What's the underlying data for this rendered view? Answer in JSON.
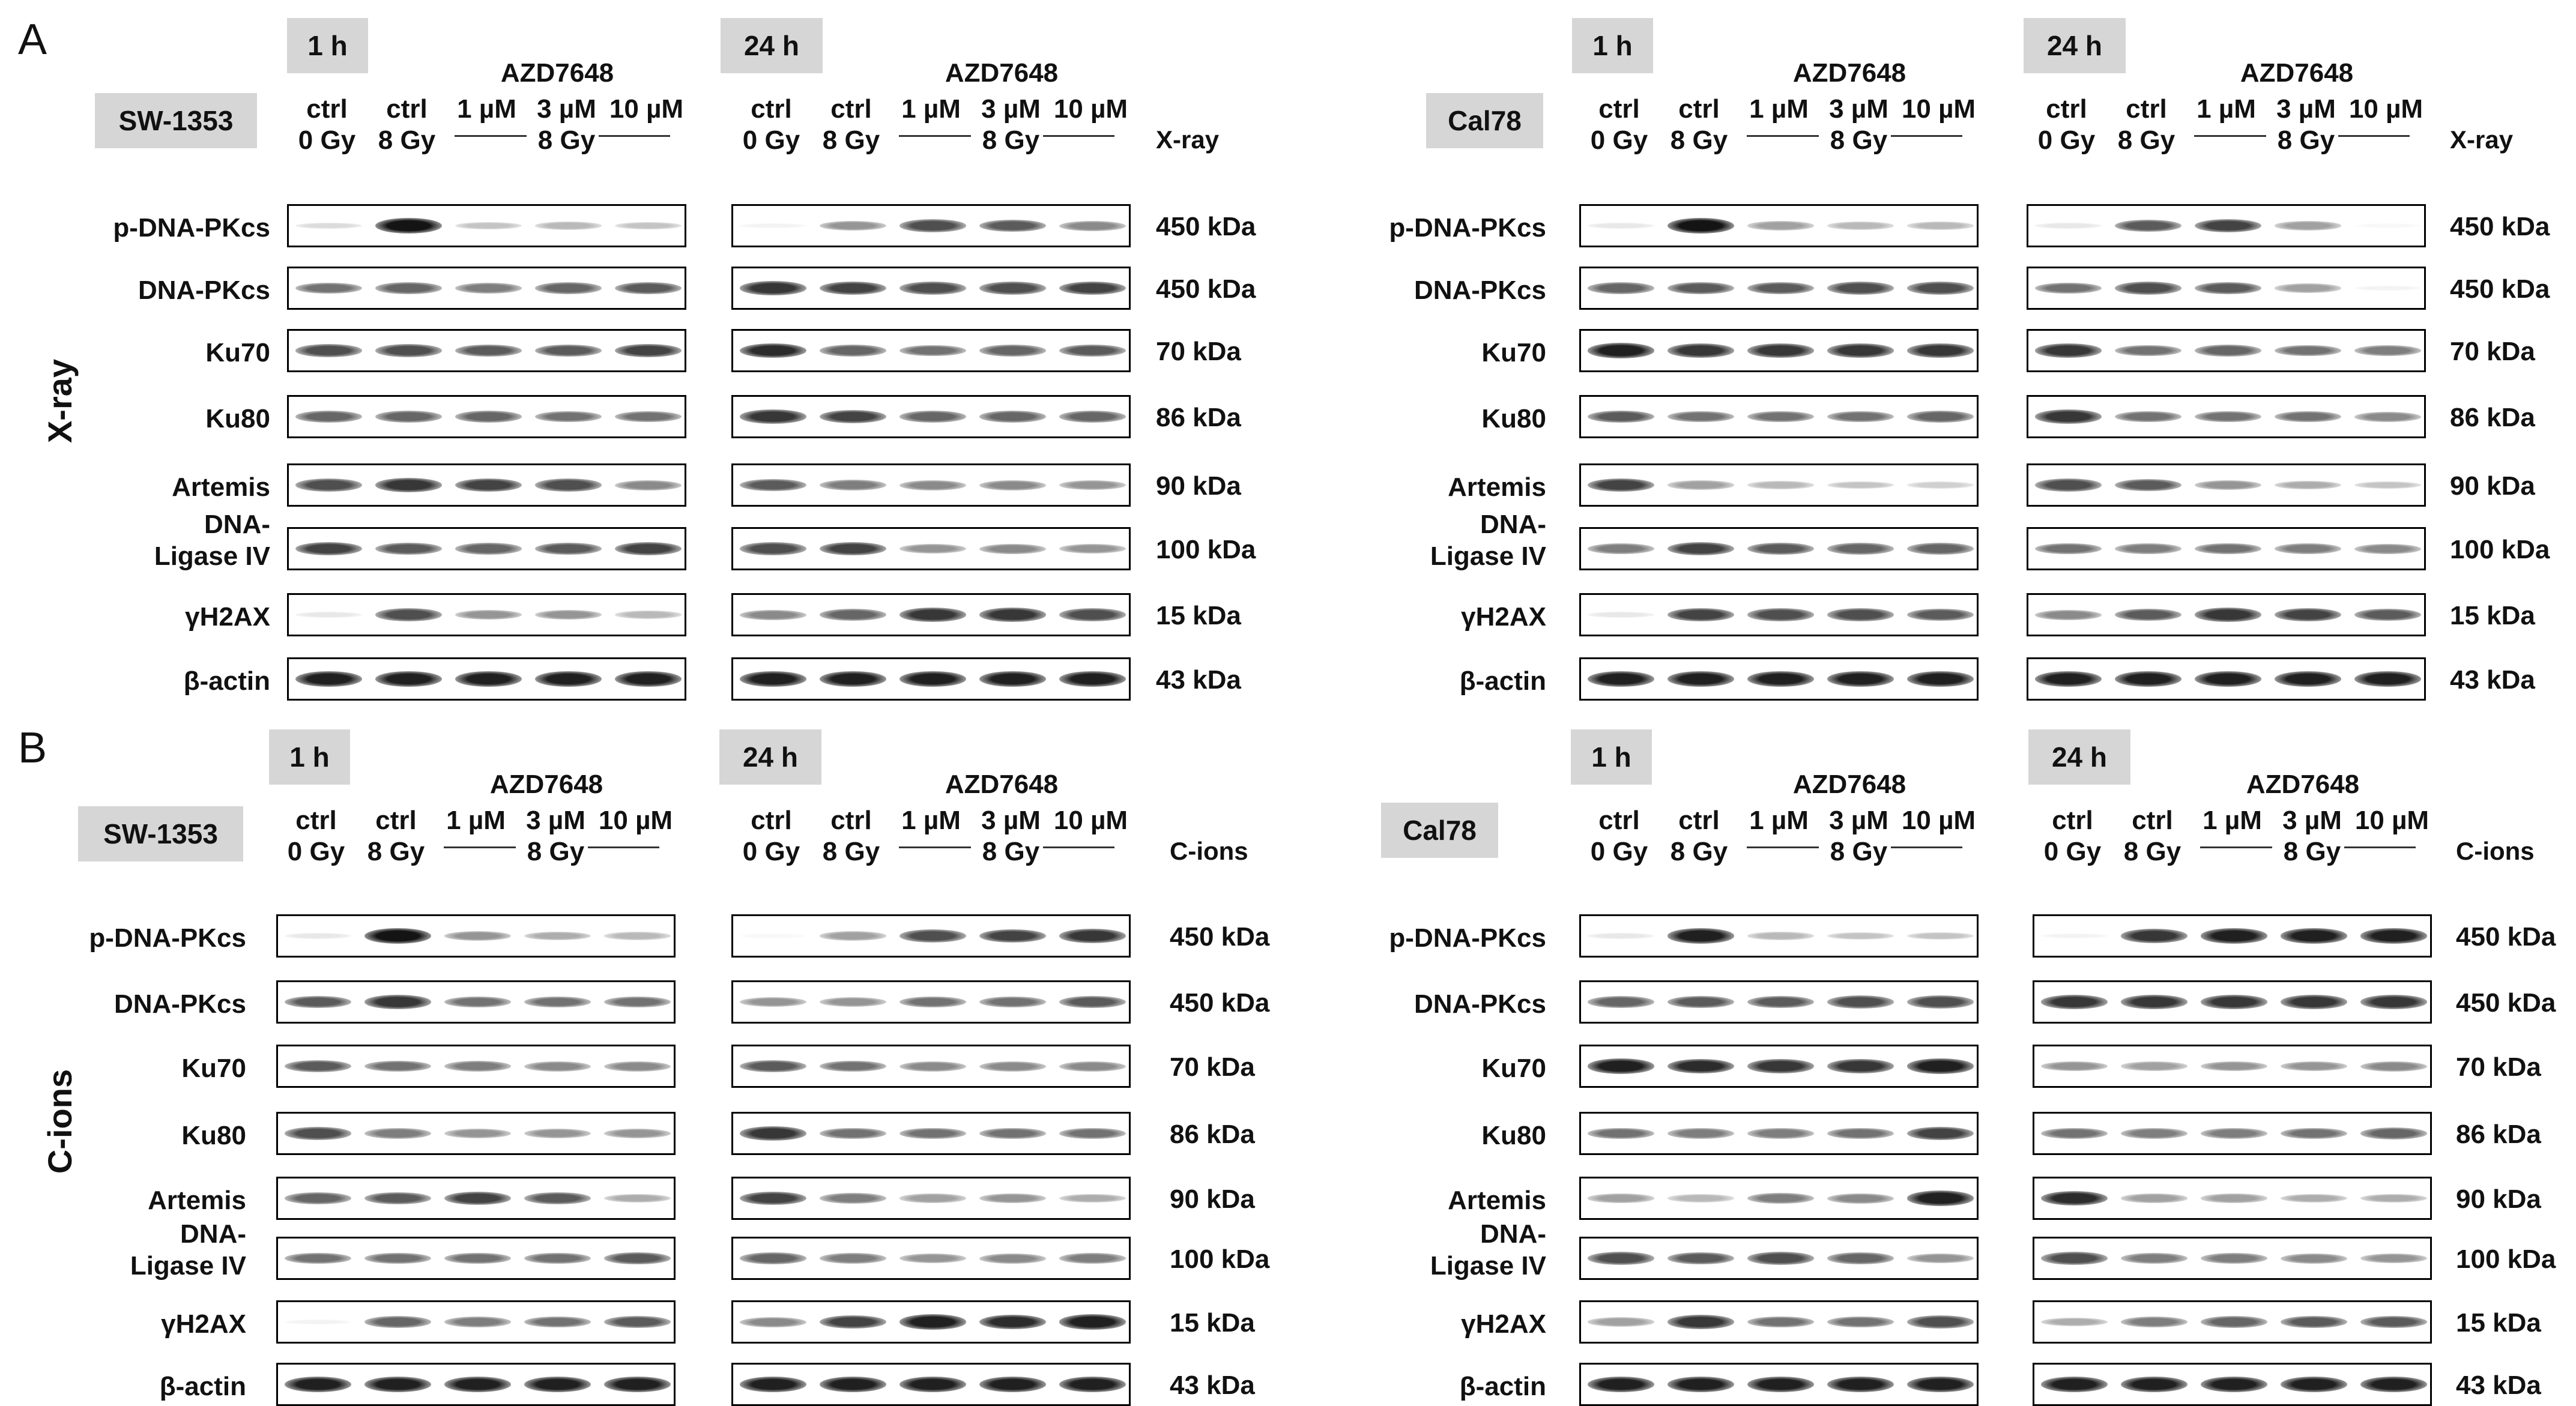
{
  "panels": [
    {
      "letter": "A",
      "side_label": "X-ray"
    },
    {
      "letter": "B",
      "side_label": "C-ions"
    }
  ],
  "cell_lines": [
    "SW-1353",
    "Cal78"
  ],
  "timepoints": [
    "1 h",
    "24 h"
  ],
  "drug": "AZD7648",
  "lanes": [
    {
      "top": "ctrl",
      "bottom": "0 Gy"
    },
    {
      "top": "ctrl",
      "bottom": "8 Gy"
    },
    {
      "top": "1 µM",
      "bottom": ""
    },
    {
      "top": "3 µM",
      "bottom": "8 Gy"
    },
    {
      "top": "10 µM",
      "bottom": ""
    }
  ],
  "radiation": [
    "X-ray",
    "C-ions"
  ],
  "proteins": [
    {
      "name": "p-DNA-PKcs",
      "kda": "450 kDa"
    },
    {
      "name": "DNA-PKcs",
      "kda": "450 kDa"
    },
    {
      "name": "Ku70",
      "kda": "70 kDa"
    },
    {
      "name": "Ku80",
      "kda": "86 kDa"
    },
    {
      "name": "Artemis",
      "kda": "90 kDa"
    },
    {
      "name": "DNA-\nLigase IV",
      "kda": "100 kDa"
    },
    {
      "name": "γH2AX",
      "kda": "15 kDa"
    },
    {
      "name": "β-actin",
      "kda": "43 kDa"
    }
  ]
}
